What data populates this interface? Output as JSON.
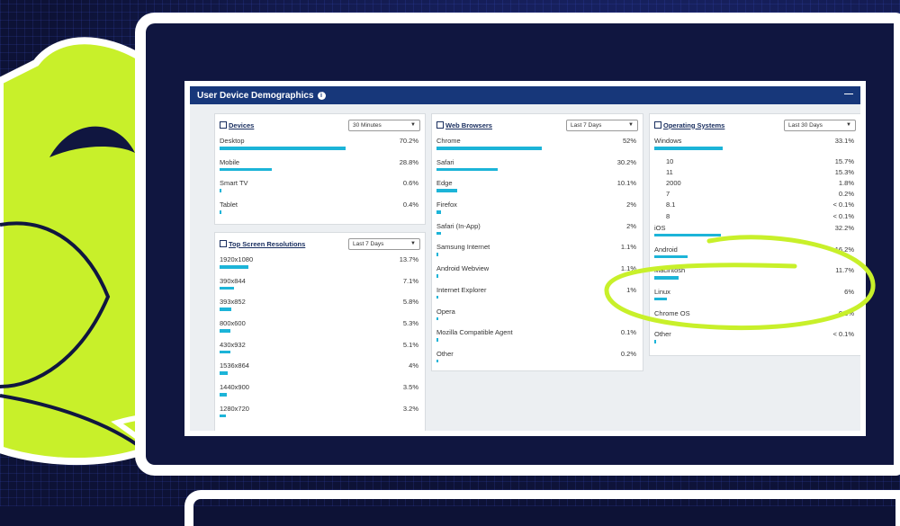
{
  "dashboard": {
    "title": "User Device Demographics",
    "info_icon": "info-icon",
    "collapse_icon": "—"
  },
  "devices": {
    "title": "Devices",
    "range": "30 Minutes",
    "items": [
      {
        "label": "Desktop",
        "value": "70.2%",
        "pct": 70.2
      },
      {
        "label": "Mobile",
        "value": "28.8%",
        "pct": 28.8
      },
      {
        "label": "Smart TV",
        "value": "0.6%",
        "pct": 0.6
      },
      {
        "label": "Tablet",
        "value": "0.4%",
        "pct": 0.4
      }
    ]
  },
  "resolutions": {
    "title": "Top Screen Resolutions",
    "range": "Last 7 Days",
    "items": [
      {
        "label": "1920x1080",
        "value": "13.7%",
        "pct": 13.7
      },
      {
        "label": "390x844",
        "value": "7.1%",
        "pct": 7.1
      },
      {
        "label": "393x852",
        "value": "5.8%",
        "pct": 5.8
      },
      {
        "label": "800x600",
        "value": "5.3%",
        "pct": 5.3
      },
      {
        "label": "430x932",
        "value": "5.1%",
        "pct": 5.1
      },
      {
        "label": "1536x864",
        "value": "4%",
        "pct": 4
      },
      {
        "label": "1440x900",
        "value": "3.5%",
        "pct": 3.5
      },
      {
        "label": "1280x720",
        "value": "3.2%",
        "pct": 3.2
      }
    ]
  },
  "browsers": {
    "title": "Web Browsers",
    "range": "Last 7 Days",
    "items": [
      {
        "label": "Chrome",
        "value": "52%",
        "pct": 52
      },
      {
        "label": "Safari",
        "value": "30.2%",
        "pct": 30.2
      },
      {
        "label": "Edge",
        "value": "10.1%",
        "pct": 10.1
      },
      {
        "label": "Firefox",
        "value": "2%",
        "pct": 2
      },
      {
        "label": "Safari (In-App)",
        "value": "2%",
        "pct": 2
      },
      {
        "label": "Samsung Internet",
        "value": "1.1%",
        "pct": 1.1
      },
      {
        "label": "Android Webview",
        "value": "1.1%",
        "pct": 1.1
      },
      {
        "label": "Internet Explorer",
        "value": "1%",
        "pct": 1
      },
      {
        "label": "Opera",
        "value": "",
        "pct": 0.6
      },
      {
        "label": "Mozilla Compatible Agent",
        "value": "0.1%",
        "pct": 0.1
      },
      {
        "label": "Other",
        "value": "0.2%",
        "pct": 0.2
      }
    ]
  },
  "os": {
    "title": "Operating Systems",
    "range": "Last 30 Days",
    "windows": {
      "label": "Windows",
      "value": "33.1%",
      "pct": 33.1
    },
    "windows_versions": [
      {
        "label": "10",
        "value": "15.7%"
      },
      {
        "label": "11",
        "value": "15.3%"
      },
      {
        "label": "2000",
        "value": "1.8%"
      },
      {
        "label": "7",
        "value": "0.2%"
      },
      {
        "label": "8.1",
        "value": "< 0.1%"
      },
      {
        "label": "8",
        "value": "< 0.1%"
      }
    ],
    "items": [
      {
        "label": "iOS",
        "value": "32.2%",
        "pct": 32.2
      },
      {
        "label": "Android",
        "value": "16.2%",
        "pct": 16.2
      },
      {
        "label": "Macintosh",
        "value": "11.7%",
        "pct": 11.7
      },
      {
        "label": "Linux",
        "value": "6%",
        "pct": 6
      },
      {
        "label": "Chrome OS",
        "value": "0.8%",
        "pct": 0.8
      },
      {
        "label": "Other",
        "value": "< 0.1%",
        "pct": 0.05
      }
    ]
  },
  "colors": {
    "bar": "#1cb4d8",
    "header": "#17377a",
    "highlight": "#c8f02a"
  }
}
